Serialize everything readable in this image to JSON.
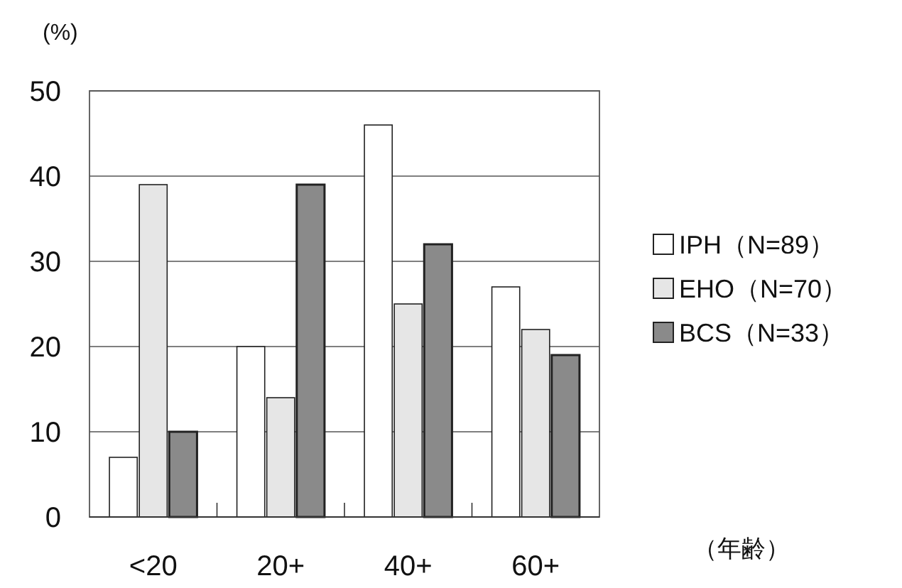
{
  "chart_data": {
    "type": "bar",
    "ylabel": "(%)",
    "xlabel": "（年齢）",
    "categories": [
      "<20",
      "20+",
      "40+",
      "60+"
    ],
    "series": [
      {
        "name": "IPH（N=89）",
        "color": "#ffffff",
        "values": [
          7,
          20,
          46,
          27
        ]
      },
      {
        "name": "EHO（N=70）",
        "color": "#e6e6e6",
        "values": [
          39,
          14,
          25,
          22
        ]
      },
      {
        "name": "BCS（N=33）",
        "color": "#8a8a8a",
        "values": [
          10,
          39,
          32,
          19
        ]
      }
    ],
    "ylim": [
      0,
      50
    ],
    "yticks": [
      0,
      10,
      20,
      30,
      40,
      50
    ],
    "grid": "y",
    "legend": "right"
  }
}
